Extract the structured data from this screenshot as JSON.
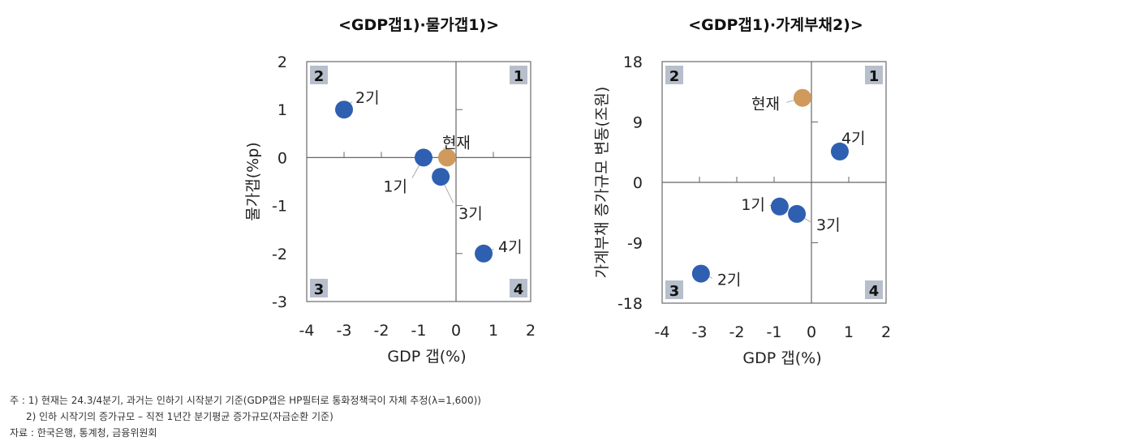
{
  "chart_data": [
    {
      "type": "scatter",
      "title": "<GDP갭1)·물가갭1)>",
      "xlabel": "GDP 갭(%)",
      "ylabel": "물가갭(%p)",
      "xlim": [
        -4,
        2
      ],
      "ylim": [
        -3,
        2
      ],
      "xticks": [
        "-4",
        "-3",
        "-2",
        "-1",
        "0",
        "1",
        "2"
      ],
      "yticks": [
        "2",
        "1",
        "0",
        "-1",
        "-2",
        "-3"
      ],
      "quadrant_labels": [
        "1",
        "2",
        "3",
        "4"
      ],
      "grid": false,
      "points": [
        {
          "label": "2기",
          "x": -3.0,
          "y": 1.0,
          "color": "#2f5fb0"
        },
        {
          "label": "1기",
          "x": -0.87,
          "y": 0.0,
          "color": "#2f5fb0"
        },
        {
          "label": "현재",
          "x": -0.24,
          "y": 0.0,
          "color": "#d09a5c"
        },
        {
          "label": "3기",
          "x": -0.41,
          "y": -0.4,
          "color": "#2f5fb0"
        },
        {
          "label": "4기",
          "x": 0.74,
          "y": -2.0,
          "color": "#2f5fb0"
        }
      ]
    },
    {
      "type": "scatter",
      "title": "<GDP갭1)·가계부채2)>",
      "xlabel": "GDP 갭(%)",
      "ylabel": "가계부채 증가규모 변동(조원)",
      "xlim": [
        -4,
        2
      ],
      "ylim": [
        -18,
        18
      ],
      "xticks": [
        "-4",
        "-3",
        "-2",
        "-1",
        "0",
        "1",
        "2"
      ],
      "yticks": [
        "18",
        "9",
        "0",
        "-9",
        "-18"
      ],
      "quadrant_labels": [
        "1",
        "2",
        "3",
        "4"
      ],
      "grid": false,
      "points": [
        {
          "label": "현재",
          "x": -0.24,
          "y": 12.6,
          "color": "#d09a5c"
        },
        {
          "label": "4기",
          "x": 0.76,
          "y": 4.6,
          "color": "#2f5fb0"
        },
        {
          "label": "1기",
          "x": -0.85,
          "y": -3.6,
          "color": "#2f5fb0"
        },
        {
          "label": "3기",
          "x": -0.39,
          "y": -4.7,
          "color": "#2f5fb0"
        },
        {
          "label": "2기",
          "x": -2.96,
          "y": -13.6,
          "color": "#2f5fb0"
        }
      ]
    }
  ],
  "notes": [
    "주 : 1) 현재는 24.3/4분기, 과거는 인하기 시작분기 기준(GDP갭은 HP필터로 통화정책국이 자체 추정(λ=1,600))",
    "2) 인하 시작기의 증가규모 – 직전 1년간 분기평균 증가규모(자금순환 기준)",
    "자료 : 한국은행, 통계청, 금융위원회"
  ]
}
